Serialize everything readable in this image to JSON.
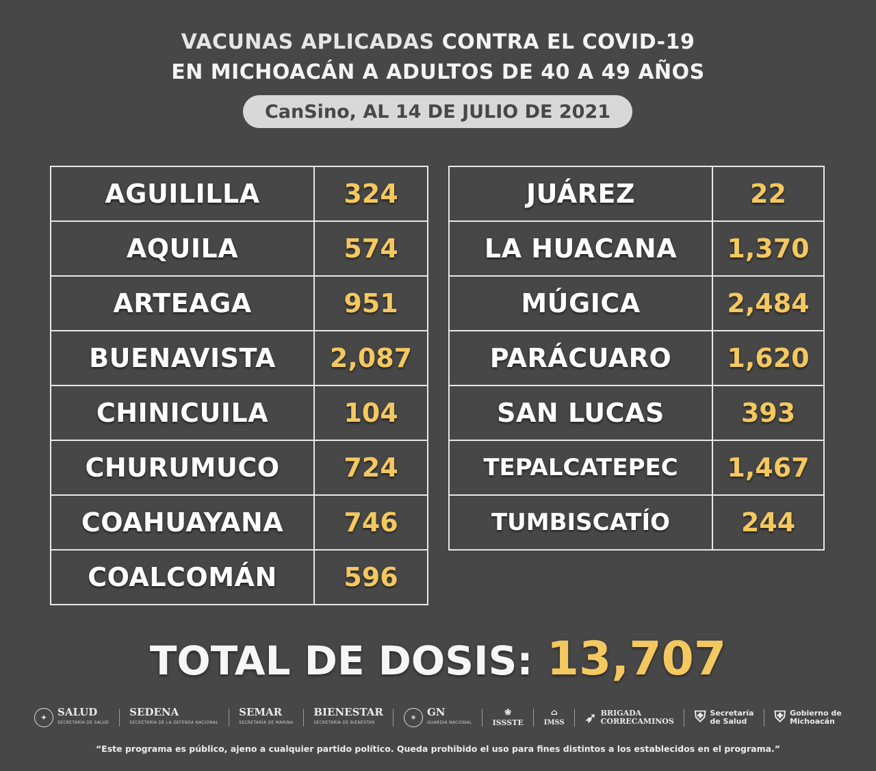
{
  "title": {
    "line1_a": "VACUNAS APLICADAS ",
    "line1_b": "CONTRA EL COVID-19",
    "line2": "EN MICHOACÁN A ADULTOS DE 40 A 49 AÑOS"
  },
  "subtitle": "CanSino, AL 14 DE JULIO DE 2021",
  "left_rows": [
    {
      "name": "AGUILILLA",
      "value": "324"
    },
    {
      "name": "AQUILA",
      "value": "574"
    },
    {
      "name": "ARTEAGA",
      "value": "951"
    },
    {
      "name": "BUENAVISTA",
      "value": "2,087"
    },
    {
      "name": "CHINICUILA",
      "value": "104"
    },
    {
      "name": "CHURUMUCO",
      "value": "724"
    },
    {
      "name": "COAHUAYANA",
      "value": "746"
    },
    {
      "name": "COALCOMÁN",
      "value": "596"
    }
  ],
  "right_rows": [
    {
      "name": "JUÁREZ",
      "value": "22"
    },
    {
      "name": "LA HUACANA",
      "value": "1,370"
    },
    {
      "name": "MÚGICA",
      "value": "2,484"
    },
    {
      "name": "PARÁCUARO",
      "value": "1,620"
    },
    {
      "name": "SAN LUCAS",
      "value": "393"
    },
    {
      "name": "TEPALCATEPEC",
      "value": "1,467"
    },
    {
      "name": "TUMBISCATÍO",
      "value": "244"
    }
  ],
  "total": {
    "label": "TOTAL DE DOSIS: ",
    "value": "13,707"
  },
  "logos": {
    "salud": "SALUD",
    "salud_sub": "SECRETARÍA DE SALUD",
    "sedena": "SEDENA",
    "sedena_sub": "SECRETARÍA DE LA DEFENSA NACIONAL",
    "semar": "SEMAR",
    "semar_sub": "SECRETARÍA DE MARINA",
    "bienestar": "BIENESTAR",
    "bienestar_sub": "SECRETARÍA DE BIENESTAR",
    "gn": "GN",
    "gn_sub": "GUARDIA NACIONAL",
    "issste": "ISSSTE",
    "imss": "IMSS",
    "brigada_1": "BRIGADA",
    "brigada_2": "CORRECAMINOS",
    "sec_salud_1": "Secretaría",
    "sec_salud_2": "de Salud",
    "gob_1": "Gobierno de",
    "gob_2": "Michoacán"
  },
  "disclaimer": "“Este programa es público, ajeno a cualquier partido político. Queda prohibido el uso para fines distintos a los establecidos en el programa.”",
  "colors": {
    "background": "#474747",
    "accent": "#f4c860",
    "pill": "#d8d8d8"
  }
}
